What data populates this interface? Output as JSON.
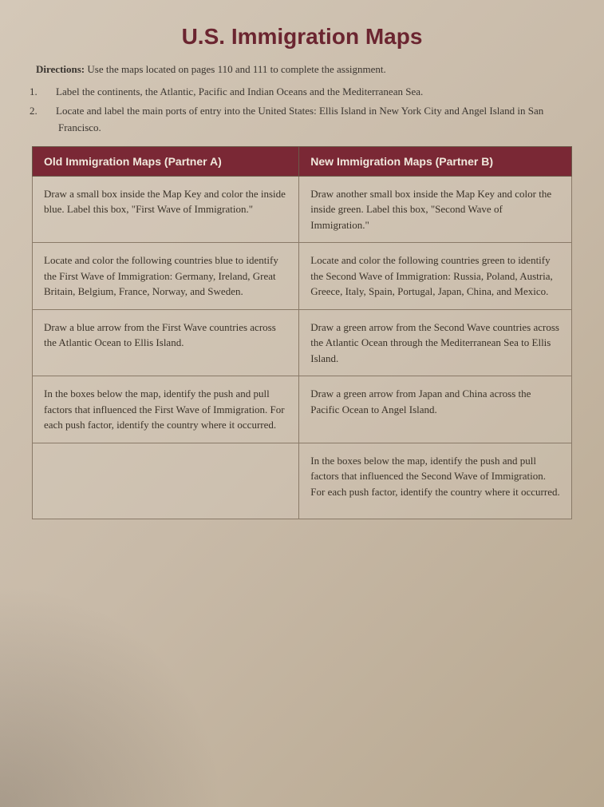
{
  "title": "U.S. Immigration Maps",
  "directions_label": "Directions:",
  "directions_text": " Use the maps located on pages 110 and 111 to complete the assignment.",
  "steps": [
    "Label the continents, the Atlantic, Pacific and Indian Oceans and the Mediterranean Sea.",
    "Locate and label the main ports of entry into the United States: Ellis Island in New York City and Angel Island in San Francisco."
  ],
  "table": {
    "header_a": "Old Immigration Maps (Partner A)",
    "header_b": "New Immigration Maps (Partner B)",
    "rows": [
      {
        "a": "Draw a small box inside the Map Key and color the inside blue. Label this box, \"First Wave of Immigration.\"",
        "b": "Draw another small box inside the Map Key and color the inside green. Label this box, \"Second Wave of Immigration.\""
      },
      {
        "a": "Locate and color the following countries blue to identify the First Wave of Immigration: Germany, Ireland, Great Britain, Belgium, France, Norway, and Sweden.",
        "b": "Locate and color the following countries green to identify the Second Wave of Immigration: Russia, Poland, Austria, Greece, Italy, Spain, Portugal, Japan, China, and Mexico."
      },
      {
        "a": "Draw a blue arrow from the First Wave countries across the Atlantic Ocean to Ellis Island.",
        "b": "Draw a green arrow from the Second Wave countries across the Atlantic Ocean through the Mediterranean Sea to Ellis Island."
      },
      {
        "a": "In the boxes below the map, identify the push and pull factors that influenced the First Wave of Immigration. For each push factor, identify the country where it occurred.",
        "b": "Draw a green arrow from Japan and China across the Pacific Ocean to Angel Island."
      },
      {
        "a": "",
        "b": "In the boxes below the map, identify the push and pull factors that influenced the Second Wave of Immigration. For each push factor, identify the country where it occurred."
      }
    ]
  }
}
